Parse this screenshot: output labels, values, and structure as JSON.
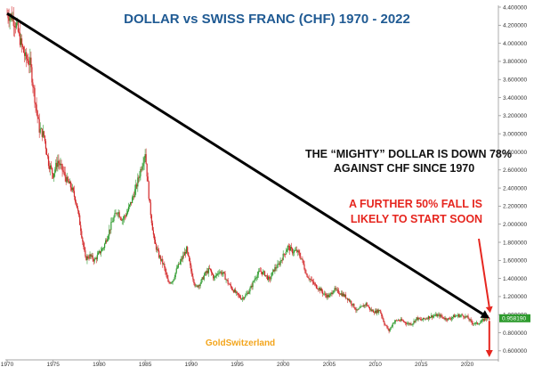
{
  "chart_data": {
    "type": "candlestick",
    "title": "DOLLAR vs SWISS FRANC (CHF)  1970 - 2022",
    "xlabel": "",
    "ylabel": "",
    "x_range": [
      1970,
      2023
    ],
    "ylim": [
      0.5,
      4.4
    ],
    "y_ticks": [
      "4.400000",
      "4.200000",
      "4.000000",
      "3.800000",
      "3.600000",
      "3.400000",
      "3.200000",
      "3.000000",
      "2.800000",
      "2.600000",
      "2.400000",
      "2.200000",
      "2.000000",
      "1.800000",
      "1.600000",
      "1.400000",
      "1.200000",
      "1.000000",
      "0.800000",
      "0.600000"
    ],
    "x_ticks": [
      "1970",
      "1975",
      "1980",
      "1985",
      "1990",
      "1995",
      "2000",
      "2005",
      "2010",
      "2015",
      "2020"
    ],
    "grid": false,
    "up_color": "#2e9b2e",
    "down_color": "#d3282a",
    "last_value_label": "0.958190",
    "series": [
      {
        "x": [
          1970.0,
          1970.5,
          1971.0,
          1971.5,
          1972.0,
          1972.5,
          1973.0,
          1973.5,
          1974.0,
          1974.5,
          1975.0,
          1975.5,
          1976.0,
          1976.5,
          1977.0,
          1977.5,
          1978.0,
          1978.5,
          1979.0,
          1979.5,
          1980.0,
          1980.5,
          1981.0,
          1981.5,
          1982.0,
          1982.5,
          1983.0,
          1983.5,
          1984.0,
          1984.5,
          1985.0,
          1985.5,
          1986.0,
          1986.5,
          1987.0,
          1987.5,
          1988.0,
          1988.5,
          1989.0,
          1989.5,
          1990.0,
          1990.5,
          1991.0,
          1991.5,
          1992.0,
          1992.5,
          1993.0,
          1993.5,
          1994.0,
          1994.5,
          1995.0,
          1995.5,
          1996.0,
          1996.5,
          1997.0,
          1997.5,
          1998.0,
          1998.5,
          1999.0,
          1999.5,
          2000.0,
          2000.5,
          2001.0,
          2001.5,
          2002.0,
          2002.5,
          2003.0,
          2003.5,
          2004.0,
          2004.5,
          2005.0,
          2005.5,
          2006.0,
          2006.5,
          2007.0,
          2007.5,
          2008.0,
          2008.5,
          2009.0,
          2009.5,
          2010.0,
          2010.5,
          2011.0,
          2011.5,
          2012.0,
          2012.5,
          2013.0,
          2013.5,
          2014.0,
          2014.5,
          2015.0,
          2015.5,
          2016.0,
          2016.5,
          2017.0,
          2017.5,
          2018.0,
          2018.5,
          2019.0,
          2019.5,
          2020.0,
          2020.5,
          2021.0,
          2021.5,
          2022.0
        ],
        "y": [
          4.32,
          4.3,
          4.2,
          4.0,
          3.84,
          3.78,
          3.4,
          3.05,
          2.98,
          2.68,
          2.55,
          2.7,
          2.6,
          2.48,
          2.4,
          2.25,
          1.95,
          1.62,
          1.65,
          1.6,
          1.68,
          1.75,
          1.9,
          2.05,
          2.15,
          2.05,
          2.12,
          2.25,
          2.4,
          2.6,
          2.8,
          2.2,
          1.8,
          1.65,
          1.55,
          1.35,
          1.38,
          1.52,
          1.62,
          1.72,
          1.48,
          1.3,
          1.35,
          1.45,
          1.5,
          1.4,
          1.48,
          1.45,
          1.35,
          1.28,
          1.22,
          1.18,
          1.22,
          1.3,
          1.42,
          1.48,
          1.45,
          1.38,
          1.5,
          1.55,
          1.65,
          1.75,
          1.7,
          1.7,
          1.62,
          1.45,
          1.38,
          1.32,
          1.28,
          1.22,
          1.2,
          1.28,
          1.25,
          1.22,
          1.18,
          1.12,
          1.04,
          1.08,
          1.12,
          1.05,
          1.03,
          1.05,
          0.9,
          0.82,
          0.92,
          0.94,
          0.93,
          0.9,
          0.9,
          0.96,
          0.94,
          0.96,
          0.98,
          0.99,
          0.99,
          0.96,
          0.95,
          0.98,
          0.99,
          0.99,
          0.97,
          0.91,
          0.9,
          0.92,
          0.96
        ]
      }
    ],
    "trendline": {
      "from": [
        1970.0,
        4.33
      ],
      "to": [
        2022.4,
        0.96
      ]
    },
    "annotations": [
      "THE “MIGHTY” DOLLAR IS DOWN 78%",
      "AGAINST CHF SINCE 1970",
      "A FURTHER 50% FALL IS",
      "LIKELY TO START SOON"
    ],
    "watermark": "GoldSwitzerland"
  }
}
